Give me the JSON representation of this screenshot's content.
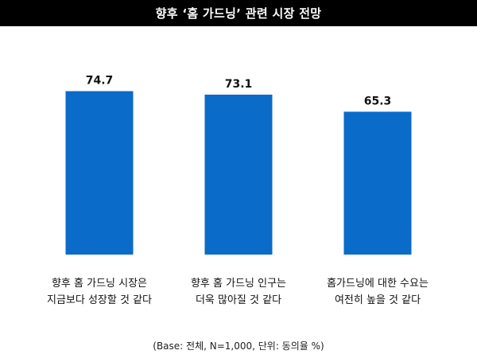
{
  "chart_data": {
    "type": "bar",
    "title": "향후 ‘홈 가드닝’ 관련 시장 전망",
    "categories": [
      [
        "향후 홈 가드닝 시장은",
        "지금보다 성장할 것 같다"
      ],
      [
        "향후 홈 가드닝 인구는",
        "더욱 많아질 것 같다"
      ],
      [
        "홈가드닝에 대한 수요는",
        "여전히 높을 것 같다"
      ]
    ],
    "values": [
      74.7,
      73.1,
      65.3
    ],
    "value_labels": [
      "74.7",
      "73.1",
      "65.3"
    ],
    "ylim": [
      0,
      80
    ],
    "grid": false,
    "legend": "none",
    "bar_color": "#0a6bc9",
    "footnote": "(Base: 전체, N=1,000, 단위: 동의율 %)"
  }
}
